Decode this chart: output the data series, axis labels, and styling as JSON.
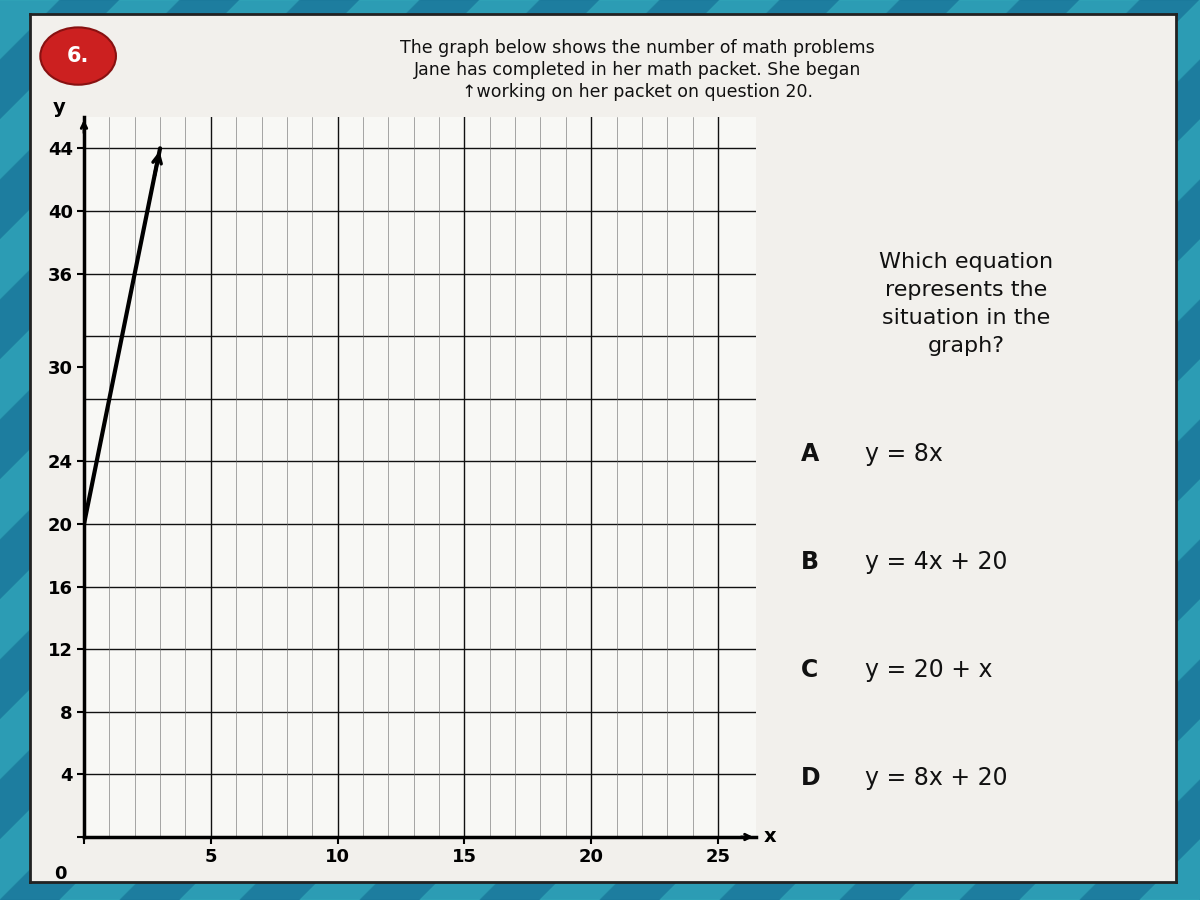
{
  "title_line1": "The graph below shows the number of math problems",
  "title_line2": "Jane has completed in her math packet. She began",
  "title_line3": "↑working on her packet on question 20.",
  "question_number": "6.",
  "y_label": "y",
  "x_label": "x",
  "x_ticks_labeled": [
    5,
    10,
    15,
    20,
    25
  ],
  "y_ticks_labeled": [
    4,
    8,
    12,
    16,
    20,
    24,
    30,
    36,
    40,
    44
  ],
  "y_grid_lines": [
    0,
    4,
    8,
    12,
    16,
    20,
    24,
    28,
    32,
    36,
    40,
    44
  ],
  "x_grid_major": [
    0,
    5,
    10,
    15,
    20,
    25
  ],
  "x_grid_minor": [
    1,
    2,
    3,
    4,
    6,
    7,
    8,
    9,
    11,
    12,
    13,
    14,
    16,
    17,
    18,
    19,
    21,
    22,
    23,
    24
  ],
  "xlim": [
    0,
    26.5
  ],
  "ylim": [
    0,
    46
  ],
  "line_x": [
    0,
    3
  ],
  "line_y": [
    20,
    44
  ],
  "line_color": "#000000",
  "line_width": 3.0,
  "outer_bg_color": "#2288aa",
  "card_bg": "#f2f0ec",
  "question_bg": "#cc2020",
  "right_text_question": "Which equation\nrepresents the\nsituation in the\ngraph?",
  "choices": [
    {
      "label": "A",
      "text": "y = 8x"
    },
    {
      "label": "B",
      "text": "y = 4x + 20"
    },
    {
      "label": "C",
      "text": "y = 20 + x"
    },
    {
      "label": "D",
      "text": "y = 8x + 20"
    }
  ],
  "stripe_color_dark": "#1a7799",
  "stripe_color_light": "#33aabb"
}
